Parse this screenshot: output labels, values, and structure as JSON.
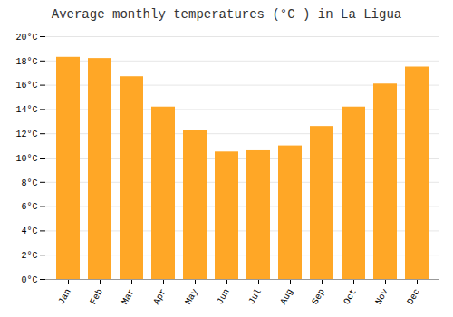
{
  "chart_data": {
    "type": "bar",
    "title": "Average monthly temperatures (°C ) in La Ligua",
    "categories": [
      "Jan",
      "Feb",
      "Mar",
      "Apr",
      "May",
      "Jun",
      "Jul",
      "Aug",
      "Sep",
      "Oct",
      "Nov",
      "Dec"
    ],
    "values": [
      18.3,
      18.2,
      16.7,
      14.2,
      12.3,
      10.5,
      10.6,
      11.0,
      12.6,
      14.2,
      16.1,
      17.5
    ],
    "color": "#FFA726",
    "ylim": [
      0,
      20
    ],
    "yticks": [
      {
        "value": 0,
        "label": "0°C"
      },
      {
        "value": 2,
        "label": "2°C"
      },
      {
        "value": 4,
        "label": "4°C"
      },
      {
        "value": 6,
        "label": "6°C"
      },
      {
        "value": 8,
        "label": "8°C"
      },
      {
        "value": 10,
        "label": "10°C"
      },
      {
        "value": 12,
        "label": "12°C"
      },
      {
        "value": 14,
        "label": "14°C"
      },
      {
        "value": 16,
        "label": "16°C"
      },
      {
        "value": 18,
        "label": "18°C"
      },
      {
        "value": 20,
        "label": "20°C"
      }
    ],
    "grid": true
  }
}
